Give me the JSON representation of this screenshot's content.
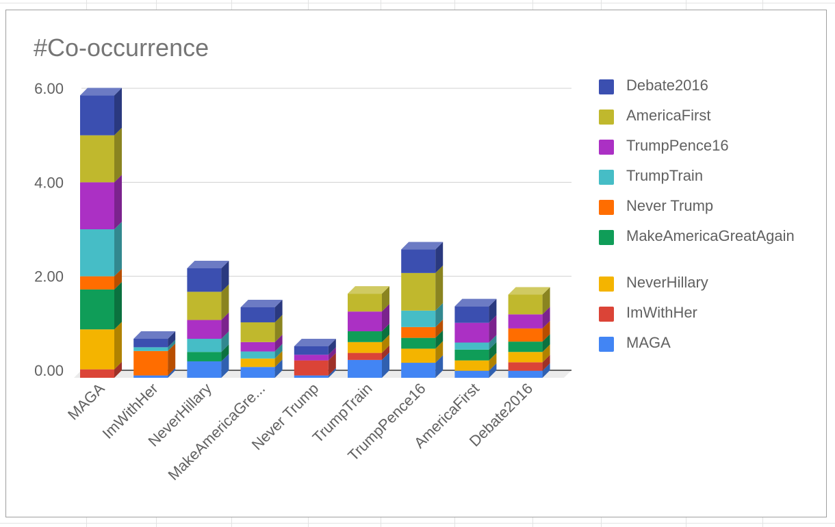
{
  "chart_data": {
    "type": "bar",
    "stacked": true,
    "three_d": true,
    "title": "#Co-occurrence",
    "xlabel": "",
    "ylabel": "",
    "ylim": [
      0,
      6
    ],
    "y_ticks": [
      "0.00",
      "2.00",
      "4.00",
      "6.00"
    ],
    "y_tick_values": [
      0,
      2,
      4,
      6
    ],
    "gridlines": true,
    "legend_position": "right",
    "categories": [
      "MAGA",
      "ImWithHer",
      "NeverHillary",
      "MakeAmericaGre...",
      "Never Trump",
      "TrumpTrain",
      "TrumpPence16",
      "AmericaFirst",
      "Debate2016"
    ],
    "series": [
      {
        "name": "MAGA",
        "color": "#4285f4",
        "values": [
          0.0,
          0.05,
          0.35,
          0.23,
          0.05,
          0.38,
          0.32,
          0.15,
          0.15
        ]
      },
      {
        "name": "ImWithHer",
        "color": "#db4437",
        "values": [
          0.18,
          0.0,
          0.0,
          0.0,
          0.32,
          0.15,
          0.0,
          0.0,
          0.18
        ]
      },
      {
        "name": "NeverHillary",
        "color": "#f4b400",
        "values": [
          0.85,
          0.0,
          0.0,
          0.18,
          0.0,
          0.23,
          0.3,
          0.22,
          0.22
        ]
      },
      {
        "name": "MakeAmericaGreatAgain",
        "color": "#0f9d58",
        "values": [
          0.85,
          0.0,
          0.2,
          0.0,
          0.0,
          0.23,
          0.23,
          0.23,
          0.22
        ]
      },
      {
        "name": "Never Trump",
        "color": "#ff6d00",
        "values": [
          0.28,
          0.52,
          0.0,
          0.0,
          0.0,
          0.0,
          0.23,
          0.0,
          0.28
        ]
      },
      {
        "name": "TrumpTrain",
        "color": "#46bdc6",
        "values": [
          1.0,
          0.08,
          0.28,
          0.15,
          0.0,
          0.0,
          0.35,
          0.15,
          0.0
        ]
      },
      {
        "name": "TrumpPence16",
        "color": "#ab30c4",
        "values": [
          1.0,
          0.0,
          0.4,
          0.2,
          0.12,
          0.42,
          0.0,
          0.42,
          0.3
        ]
      },
      {
        "name": "AmericaFirst",
        "color": "#c0b82d",
        "values": [
          1.0,
          0.0,
          0.6,
          0.42,
          0.0,
          0.38,
          0.8,
          0.0,
          0.42
        ]
      },
      {
        "name": "Debate2016",
        "color": "#3b4fb0",
        "values": [
          0.85,
          0.18,
          0.5,
          0.32,
          0.18,
          0.0,
          0.5,
          0.35,
          0.0
        ]
      }
    ]
  },
  "legend": {
    "items": [
      {
        "label": "Debate2016",
        "color": "#3b4fb0"
      },
      {
        "label": "AmericaFirst",
        "color": "#c0b82d"
      },
      {
        "label": "TrumpPence16",
        "color": "#ab30c4"
      },
      {
        "label": "TrumpTrain",
        "color": "#46bdc6"
      },
      {
        "label": "Never Trump",
        "color": "#ff6d00"
      },
      {
        "label": "MakeAmericaGreatAgain",
        "color": "#0f9d58"
      },
      {
        "label": "NeverHillary",
        "color": "#f4b400"
      },
      {
        "label": "ImWithHer",
        "color": "#db4437"
      },
      {
        "label": "MAGA",
        "color": "#4285f4"
      }
    ]
  }
}
